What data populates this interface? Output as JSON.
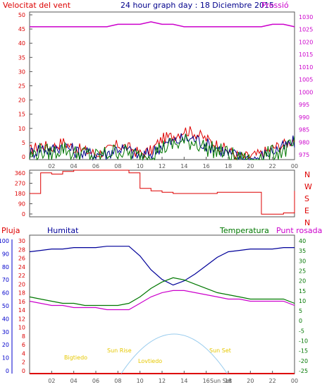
{
  "header": {
    "title": "24 hour graph day : 18 Diciembre 2015",
    "left_label": "Velocitat del vent",
    "right_label": "Pressió"
  },
  "colors": {
    "frame": "#555555",
    "wind": "#dd0000",
    "gust": "#00008b",
    "green": "#007700",
    "pressure": "#cc00cc",
    "humidity": "#000099",
    "dewpoint": "#cc00cc",
    "temp": "#007700",
    "rain": "#dd0000",
    "sun": "#99ccee",
    "sunlabel": "#e6c800",
    "blue_axis": "#0000cc"
  },
  "panel1": {
    "left_ticks": [
      "50",
      "45",
      "40",
      "35",
      "30",
      "25",
      "20",
      "15",
      "10",
      "5",
      "0"
    ],
    "right_ticks": [
      "1030",
      "1025",
      "1020",
      "1015",
      "1010",
      "1005",
      "1000",
      "995",
      "990",
      "985",
      "980",
      "975"
    ],
    "x_ticks": [
      "02",
      "04",
      "06",
      "08",
      "10",
      "12",
      "14",
      "16",
      "18",
      "20",
      "22",
      "00"
    ]
  },
  "panel2": {
    "left_ticks": [
      "360",
      "270",
      "180",
      "90",
      "0"
    ],
    "right_ticks": [
      "N",
      "W",
      "S",
      "E",
      "N"
    ]
  },
  "panel3": {
    "labels": {
      "rain": "Pluja",
      "humidity": "Humitat",
      "temp": "Temperatura",
      "dewpoint": "Punt rosada"
    },
    "hum_ticks": [
      "100",
      "90",
      "80",
      "70",
      "60",
      "50",
      "40",
      "30",
      "20",
      "10",
      "0"
    ],
    "rain_ticks": [
      "30",
      "28",
      "26",
      "24",
      "22",
      "20",
      "18",
      "16",
      "14",
      "12",
      "10",
      "8",
      "6",
      "4",
      "2",
      "0"
    ],
    "temp_ticks": [
      "40",
      "35",
      "30",
      "25",
      "20",
      "15",
      "10",
      "5",
      "0",
      "-5",
      "-10",
      "-15",
      "-20",
      "-25"
    ],
    "x_ticks": [
      "02",
      "04",
      "06",
      "08",
      "10",
      "12",
      "14",
      "16",
      "18",
      "20",
      "22",
      "00"
    ],
    "sun_labels": {
      "moonrise": "Bigtiedo",
      "sunrise": "Sun Rise",
      "moonset": "Lovtiedo",
      "sunset": "Sun Set",
      "bottom_sun": "Sun Set"
    }
  },
  "chart_data": [
    {
      "type": "line",
      "title": "24 hour graph day : 18 Diciembre 2015",
      "ylabel": "Velocitat del vent",
      "y2label": "Pressió",
      "x": [
        0,
        1,
        2,
        3,
        4,
        5,
        6,
        7,
        8,
        9,
        10,
        11,
        12,
        13,
        14,
        15,
        16,
        17,
        18,
        19,
        20,
        21,
        22,
        23,
        24
      ],
      "ylim": [
        0,
        50
      ],
      "y2lim": [
        972,
        1032
      ],
      "series": [
        {
          "values": [
            3,
            5,
            4,
            6,
            4,
            3,
            2,
            3,
            5,
            4,
            2,
            3,
            7,
            8,
            10,
            9,
            7,
            5,
            3,
            1,
            1,
            2,
            4,
            5,
            7
          ]
        },
        {
          "values": [
            2,
            4,
            3,
            5,
            3,
            2,
            2,
            2,
            4,
            3,
            1,
            2,
            5,
            6,
            7,
            7,
            5,
            4,
            2,
            1,
            0,
            1,
            3,
            4,
            6
          ]
        },
        {
          "values": [
            1,
            3,
            2,
            4,
            2,
            2,
            1,
            2,
            3,
            2,
            1,
            2,
            4,
            5,
            6,
            6,
            4,
            3,
            2,
            0,
            0,
            1,
            2,
            3,
            5
          ]
        },
        {
          "values": [
            1026,
            1026,
            1026,
            1026,
            1026,
            1026,
            1026,
            1026,
            1027,
            1027,
            1027,
            1028,
            1027,
            1027,
            1026,
            1026,
            1026,
            1026,
            1026,
            1026,
            1026,
            1026,
            1027,
            1027,
            1026
          ]
        }
      ]
    },
    {
      "type": "line",
      "x": [
        0,
        1,
        2,
        3,
        4,
        5,
        6,
        7,
        8,
        9,
        10,
        11,
        12,
        13,
        14,
        15,
        16,
        17,
        18,
        19,
        20,
        21,
        22,
        23,
        24
      ],
      "ylim": [
        0,
        360
      ],
      "series": [
        {
          "values": [
            180,
            340,
            330,
            350,
            360,
            360,
            360,
            360,
            360,
            340,
            220,
            200,
            190,
            180,
            180,
            180,
            180,
            190,
            190,
            190,
            190,
            20,
            20,
            30,
            200
          ]
        }
      ]
    },
    {
      "type": "line",
      "x": [
        0,
        1,
        2,
        3,
        4,
        5,
        6,
        7,
        8,
        9,
        10,
        11,
        12,
        13,
        14,
        15,
        16,
        17,
        18,
        19,
        20,
        21,
        22,
        23,
        24
      ],
      "ylim": [
        0,
        100
      ],
      "y2lim": [
        -25,
        40
      ],
      "series": [
        {
          "values": [
            88,
            89,
            90,
            90,
            91,
            91,
            91,
            92,
            92,
            92,
            85,
            75,
            68,
            64,
            67,
            72,
            78,
            84,
            88,
            89,
            90,
            90,
            90,
            91,
            91
          ]
        },
        {
          "values": [
            11,
            10,
            9,
            8,
            8,
            7,
            7,
            7,
            7,
            8,
            11,
            15,
            18,
            20,
            19,
            17,
            15,
            13,
            12,
            11,
            10,
            10,
            10,
            10,
            8
          ]
        },
        {
          "values": [
            9,
            8,
            7,
            7,
            6,
            6,
            6,
            5,
            5,
            5,
            8,
            11,
            13,
            14,
            14,
            13,
            12,
            11,
            10,
            10,
            9,
            9,
            9,
            9,
            7
          ]
        },
        {
          "values": [
            0,
            0,
            0,
            0,
            0,
            0,
            0,
            0,
            0,
            0,
            0,
            0,
            0,
            0,
            0,
            0,
            0,
            0,
            0,
            0,
            0,
            0,
            0,
            0,
            0
          ]
        }
      ]
    }
  ]
}
